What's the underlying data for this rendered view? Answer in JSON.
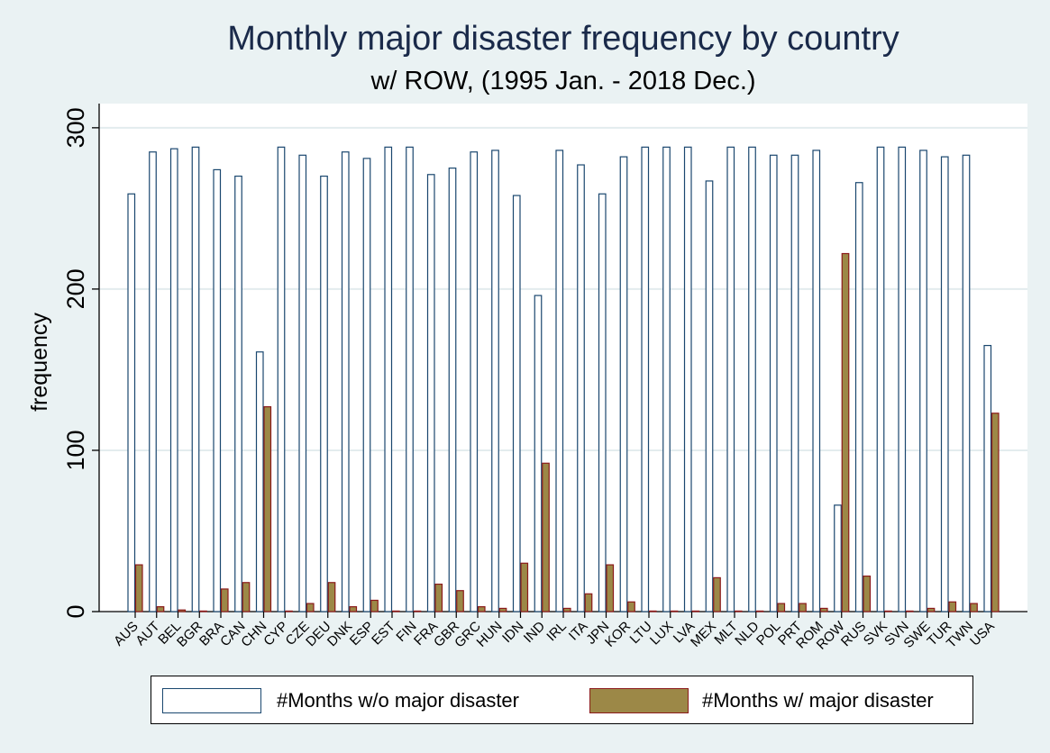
{
  "chart_data": {
    "type": "bar",
    "title": "Monthly major disaster frequency by country",
    "subtitle": "w/ ROW, (1995 Jan. - 2018 Dec.)",
    "xlabel": "",
    "ylabel": "frequency",
    "ylim": [
      0,
      315
    ],
    "yticks": [
      0,
      100,
      200,
      300
    ],
    "grid": true,
    "legend_position": "bottom",
    "categories": [
      "AUS",
      "AUT",
      "BEL",
      "BGR",
      "BRA",
      "CAN",
      "CHN",
      "CYP",
      "CZE",
      "DEU",
      "DNK",
      "ESP",
      "EST",
      "FIN",
      "FRA",
      "GBR",
      "GRC",
      "HUN",
      "IDN",
      "IND",
      "IRL",
      "ITA",
      "JPN",
      "KOR",
      "LTU",
      "LUX",
      "LVA",
      "MEX",
      "MLT",
      "NLD",
      "POL",
      "PRT",
      "ROM",
      "ROW",
      "RUS",
      "SVK",
      "SVN",
      "SWE",
      "TUR",
      "TWN",
      "USA"
    ],
    "series": [
      {
        "name": "#Months w/o major disaster",
        "color": "#ffffff",
        "stroke": "#1a476f",
        "values": [
          259,
          285,
          287,
          288,
          274,
          270,
          161,
          288,
          283,
          270,
          285,
          281,
          288,
          288,
          271,
          275,
          285,
          286,
          258,
          196,
          286,
          277,
          259,
          282,
          288,
          288,
          288,
          267,
          288,
          288,
          283,
          283,
          286,
          66,
          266,
          288,
          288,
          286,
          282,
          283,
          165
        ]
      },
      {
        "name": "#Months w/ major disaster",
        "color": "#9c8847",
        "stroke": "#8b1a1a",
        "values": [
          29,
          3,
          1,
          0,
          14,
          18,
          127,
          0,
          5,
          18,
          3,
          7,
          0,
          0,
          17,
          13,
          3,
          2,
          30,
          92,
          2,
          11,
          29,
          6,
          0,
          0,
          0,
          21,
          0,
          0,
          5,
          5,
          2,
          222,
          22,
          0,
          0,
          2,
          6,
          5,
          123
        ]
      }
    ]
  }
}
